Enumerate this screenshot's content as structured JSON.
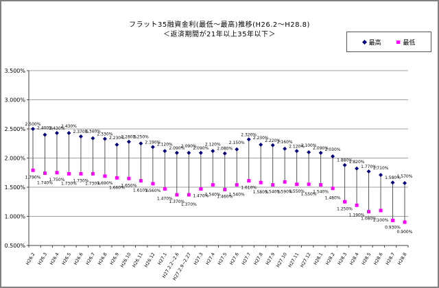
{
  "chart_data": {
    "type": "scatter",
    "subtype": "high-low-stock",
    "title": "フラット35融資金利(最低～最高)推移(H26.2～H28.8)",
    "subtitle": "＜返済期間が21年以上35年以下＞",
    "categories": [
      "H26.2",
      "H26.3",
      "H26.4",
      "H26.5",
      "H26.6",
      "H26.7",
      "H26.8",
      "H26.9",
      "H26.10",
      "H26.11",
      "H26.12",
      "H27.1",
      "H27.2.2~2.6",
      "H27.2.9~2.27",
      "H27.3",
      "H27.4",
      "H27.5",
      "H27.6",
      "H27.7",
      "H27.8",
      "H27.9",
      "H27.10",
      "H27.11",
      "H27.12",
      "H28.1",
      "H28.2",
      "H28.3",
      "H28.4",
      "H28.5",
      "H28.6",
      "H28.7",
      "H28.8"
    ],
    "series": [
      {
        "name": "最高",
        "marker": "diamond",
        "color": "#000080",
        "values": [
          2.5,
          2.4,
          2.43,
          2.43,
          2.37,
          2.34,
          2.33,
          2.23,
          2.28,
          2.25,
          2.19,
          2.12,
          2.09,
          2.09,
          2.09,
          2.12,
          2.08,
          2.15,
          2.32,
          2.23,
          2.22,
          2.16,
          2.12,
          2.1,
          2.09,
          2.03,
          1.88,
          1.82,
          1.77,
          1.71,
          1.58,
          1.57
        ]
      },
      {
        "name": "最低",
        "marker": "square",
        "color": "#FF00FF",
        "values": [
          1.79,
          1.74,
          1.75,
          1.73,
          1.73,
          1.73,
          1.69,
          1.66,
          1.65,
          1.61,
          1.56,
          1.47,
          1.37,
          1.37,
          1.47,
          1.54,
          1.46,
          1.54,
          1.61,
          1.58,
          1.54,
          1.59,
          1.55,
          1.55,
          1.54,
          1.48,
          1.25,
          1.19,
          1.08,
          1.1,
          0.93,
          0.9
        ]
      }
    ],
    "xlabel": "",
    "ylabel": "",
    "ylim": [
      0.5,
      3.5
    ],
    "yticks": [
      3.5,
      3.0,
      2.5,
      2.0,
      1.5,
      1.0,
      0.5
    ],
    "ytick_labels": [
      "3.500%",
      "3.000%",
      "2.500%",
      "2.000%",
      "1.500%",
      "1.000%",
      "0.500%"
    ],
    "data_label_format": "0.000%",
    "grid": "horizontal",
    "high_low_lines": true,
    "legend_position": "top-right",
    "colors": {
      "grid_line": "#808080",
      "axis_line": "#404040",
      "hilo_line": "#555555",
      "data_label_text": "#000000",
      "outer_border": "#808080"
    }
  }
}
